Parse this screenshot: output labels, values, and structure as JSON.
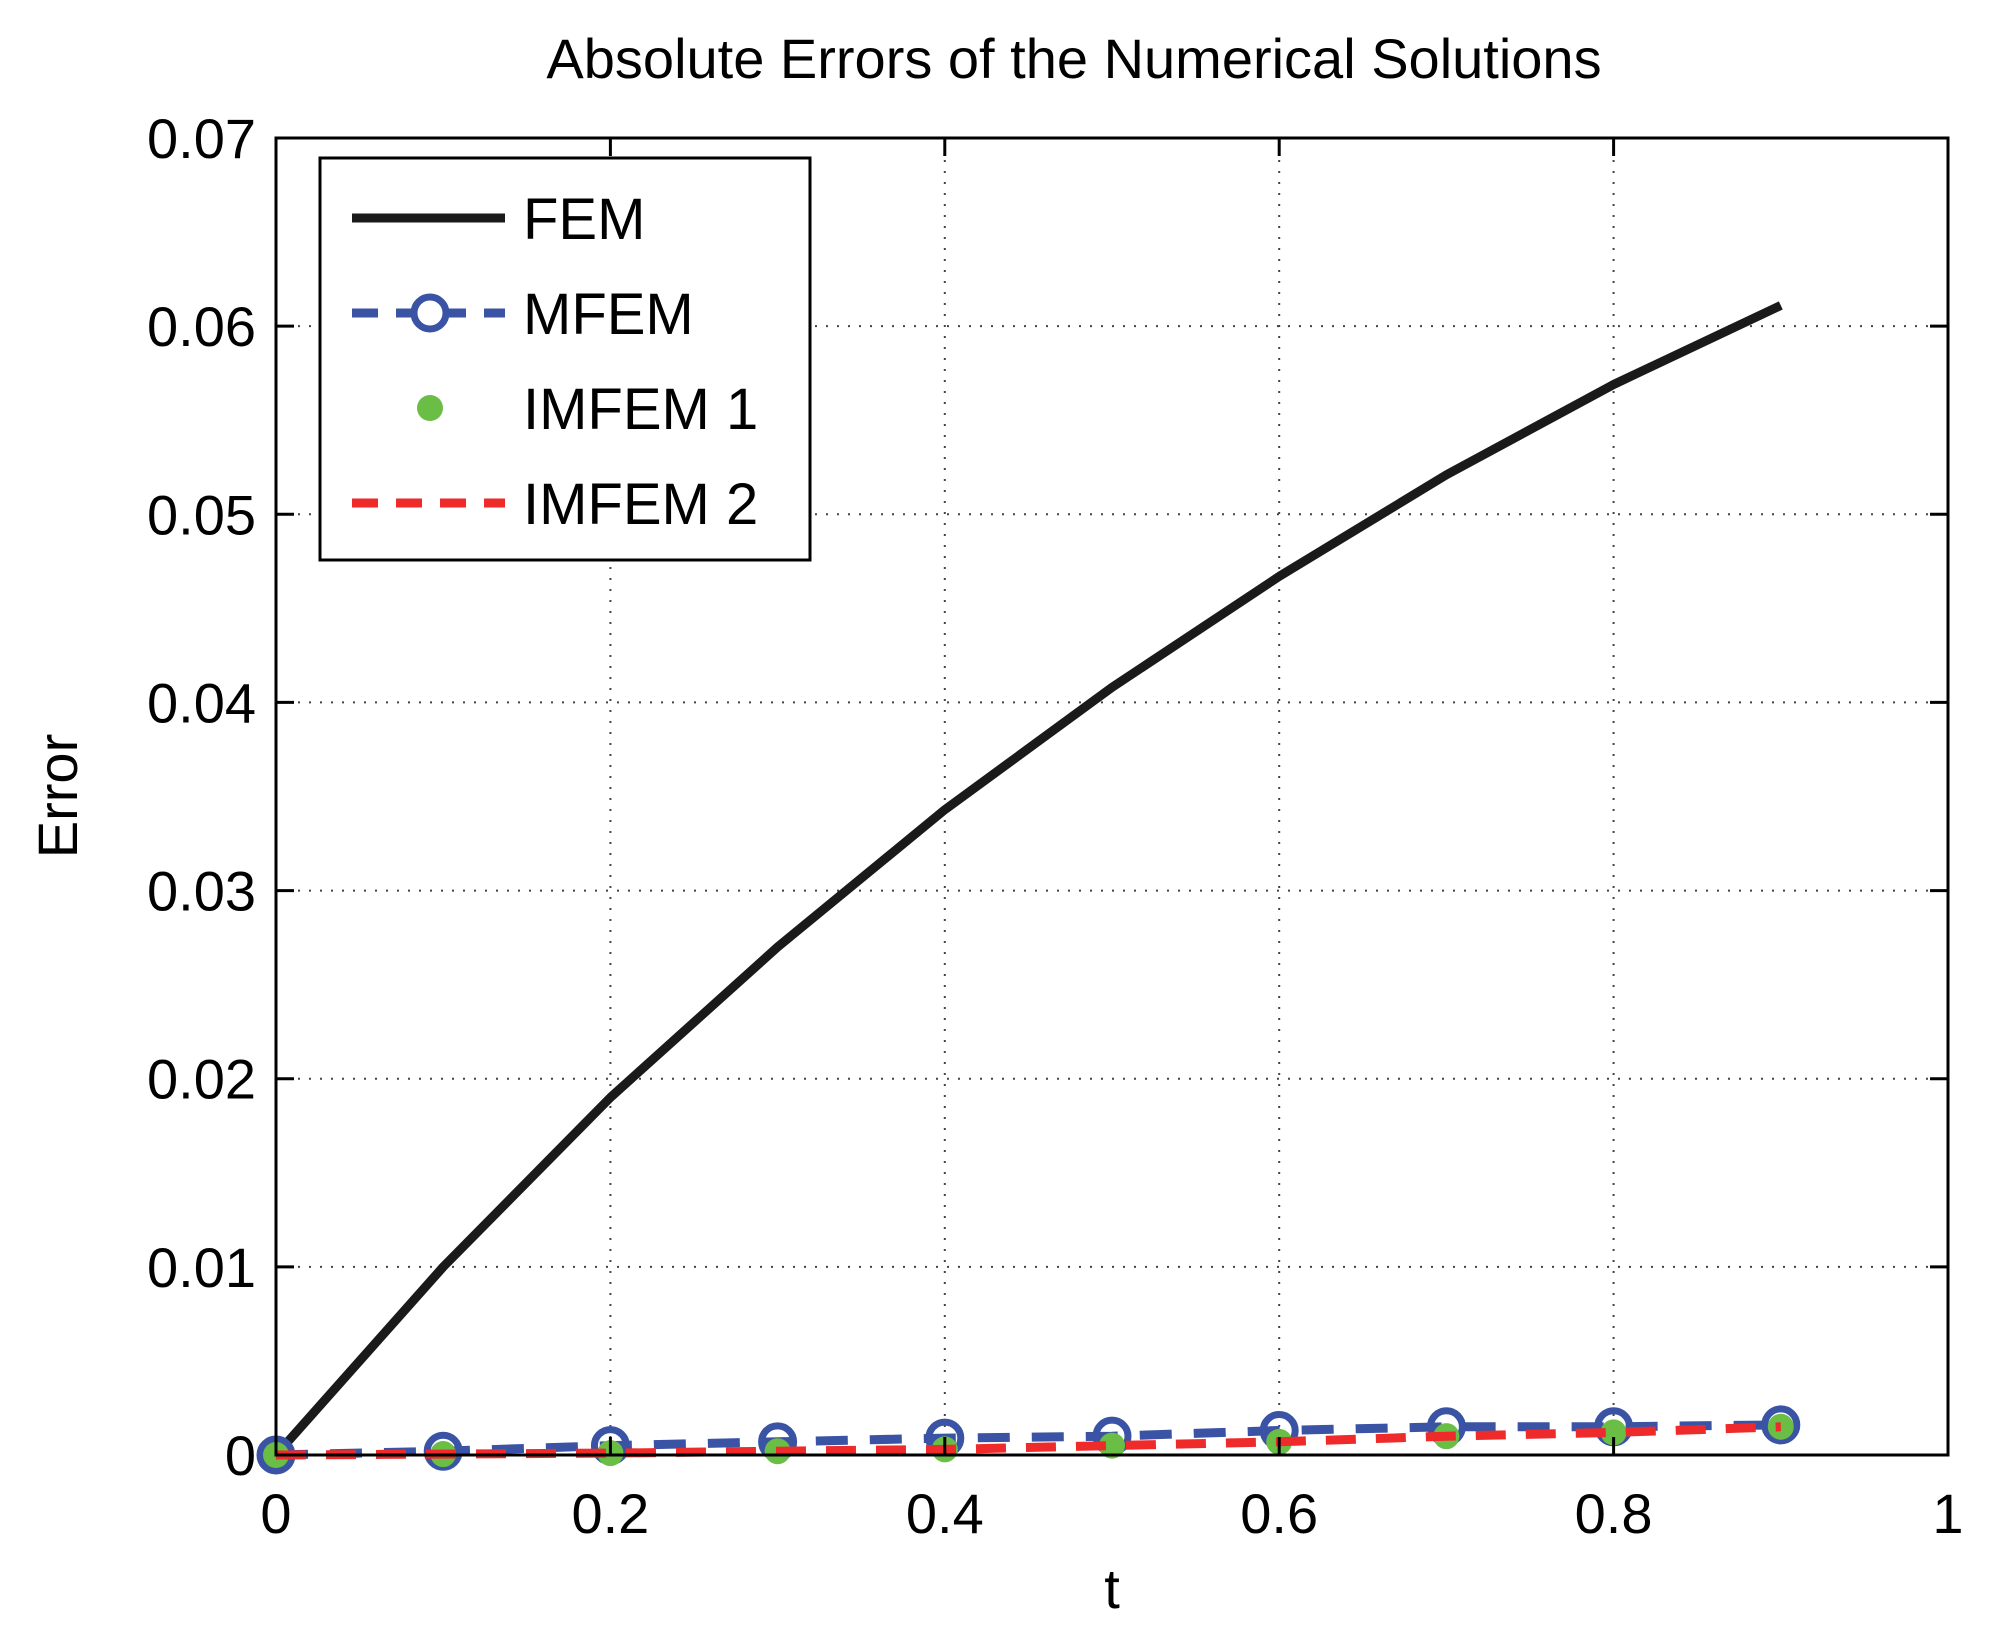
{
  "chart_data": {
    "type": "line",
    "title": "Absolute Errors of the Numerical Solutions",
    "xlabel": "t",
    "ylabel": "Error",
    "xlim": [
      0,
      1
    ],
    "ylim": [
      0,
      0.07
    ],
    "xticks": [
      0,
      0.2,
      0.4,
      0.6,
      0.8,
      1
    ],
    "xtick_labels": [
      "0",
      "0.2",
      "0.4",
      "0.6",
      "0.8",
      "1"
    ],
    "yticks": [
      0,
      0.01,
      0.02,
      0.03,
      0.04,
      0.05,
      0.06,
      0.07
    ],
    "ytick_labels": [
      "0",
      "0.01",
      "0.02",
      "0.03",
      "0.04",
      "0.05",
      "0.06",
      "0.07"
    ],
    "grid": true,
    "legend_position": "top-left",
    "x": [
      0,
      0.1,
      0.2,
      0.3,
      0.4,
      0.5,
      0.6,
      0.7,
      0.8,
      0.9
    ],
    "series": [
      {
        "name": "FEM",
        "style": "solid",
        "marker": "none",
        "color": "#1a1a1a",
        "values": [
          0,
          0.01,
          0.019,
          0.027,
          0.0343,
          0.0408,
          0.0467,
          0.0521,
          0.0569,
          0.0611
        ]
      },
      {
        "name": "MFEM",
        "style": "dashed",
        "marker": "circle",
        "color": "#3a53a4",
        "values": [
          0,
          0.0002,
          0.0005,
          0.0007,
          0.0009,
          0.001,
          0.0013,
          0.0015,
          0.0015,
          0.0016
        ]
      },
      {
        "name": "IMFEM 1",
        "style": "none",
        "marker": "dot",
        "color": "#6abd45",
        "values": [
          0,
          5e-05,
          0.0001,
          0.0002,
          0.0003,
          0.0005,
          0.0007,
          0.001,
          0.0012,
          0.0015
        ]
      },
      {
        "name": "IMFEM 2",
        "style": "dashed",
        "marker": "none",
        "color": "#ee2a2a",
        "values": [
          0,
          5e-05,
          0.0001,
          0.0002,
          0.0003,
          0.0005,
          0.0007,
          0.001,
          0.0012,
          0.0015
        ]
      }
    ]
  }
}
